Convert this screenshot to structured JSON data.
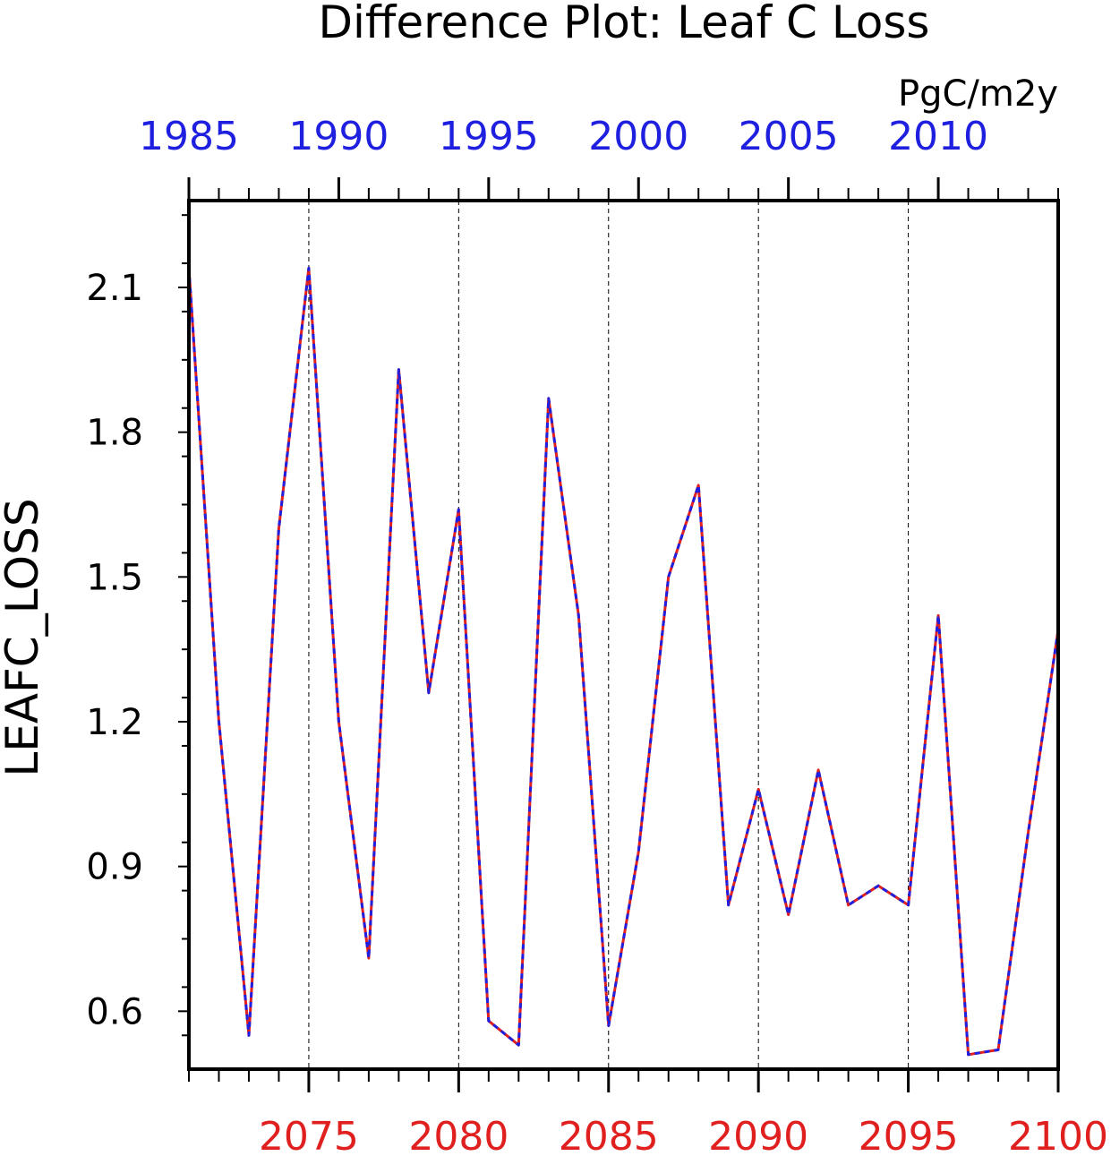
{
  "chart_data": {
    "type": "line",
    "title": "Difference Plot: Leaf C Loss",
    "units": "PgC/m2y",
    "ylabel": "LEAFC_LOSS",
    "ylim": [
      0.48,
      2.28
    ],
    "yticks": [
      0.6,
      0.9,
      1.2,
      1.5,
      1.8,
      2.1
    ],
    "ytick_labels": [
      "0.6",
      "0.9",
      "1.2",
      "1.5",
      "1.8",
      "2.1"
    ],
    "x_top": {
      "range": [
        1985,
        2014
      ],
      "ticks": [
        1985,
        1990,
        1995,
        2000,
        2005,
        2010
      ],
      "tick_labels": [
        "1985",
        "1990",
        "1995",
        "2000",
        "2005",
        "2010"
      ],
      "color": "#1f1fe0"
    },
    "x_bottom": {
      "range": [
        2071,
        2100
      ],
      "ticks": [
        2075,
        2080,
        2085,
        2090,
        2095,
        2100
      ],
      "tick_labels": [
        "2075",
        "2080",
        "2085",
        "2090",
        "2095",
        "2100"
      ],
      "color": "#e01f1f"
    },
    "grid": "vertical dashed at bottom-axis major ticks",
    "series": [
      {
        "color": "#e01f1f",
        "style": "solid",
        "x": [
          2071,
          2072,
          2073,
          2074,
          2075,
          2076,
          2077,
          2078,
          2079,
          2080,
          2081,
          2082,
          2083,
          2084,
          2085,
          2086,
          2087,
          2088,
          2089,
          2090,
          2091,
          2092,
          2093,
          2094,
          2095,
          2096,
          2097,
          2098,
          2099,
          2100
        ],
        "values": [
          2.14,
          1.2,
          0.55,
          1.6,
          2.14,
          1.2,
          0.71,
          1.93,
          1.26,
          1.64,
          0.58,
          0.53,
          1.87,
          1.42,
          0.57,
          0.93,
          1.5,
          1.69,
          0.82,
          1.06,
          0.8,
          1.1,
          0.82,
          0.86,
          0.82,
          1.42,
          0.51,
          0.52,
          0.97,
          1.39
        ]
      },
      {
        "color": "#1f1fe0",
        "style": "dashed",
        "x": [
          1985,
          1986,
          1987,
          1988,
          1989,
          1990,
          1991,
          1992,
          1993,
          1994,
          1995,
          1996,
          1997,
          1998,
          1999,
          2000,
          2001,
          2002,
          2003,
          2004,
          2005,
          2006,
          2007,
          2008,
          2009,
          2010,
          2011,
          2012,
          2013,
          2014
        ],
        "values": [
          2.14,
          1.2,
          0.55,
          1.6,
          2.14,
          1.2,
          0.71,
          1.93,
          1.26,
          1.64,
          0.58,
          0.53,
          1.87,
          1.42,
          0.57,
          0.93,
          1.5,
          1.69,
          0.82,
          1.06,
          0.8,
          1.1,
          0.82,
          0.86,
          0.82,
          1.42,
          0.51,
          0.52,
          0.97,
          1.39
        ]
      }
    ]
  }
}
